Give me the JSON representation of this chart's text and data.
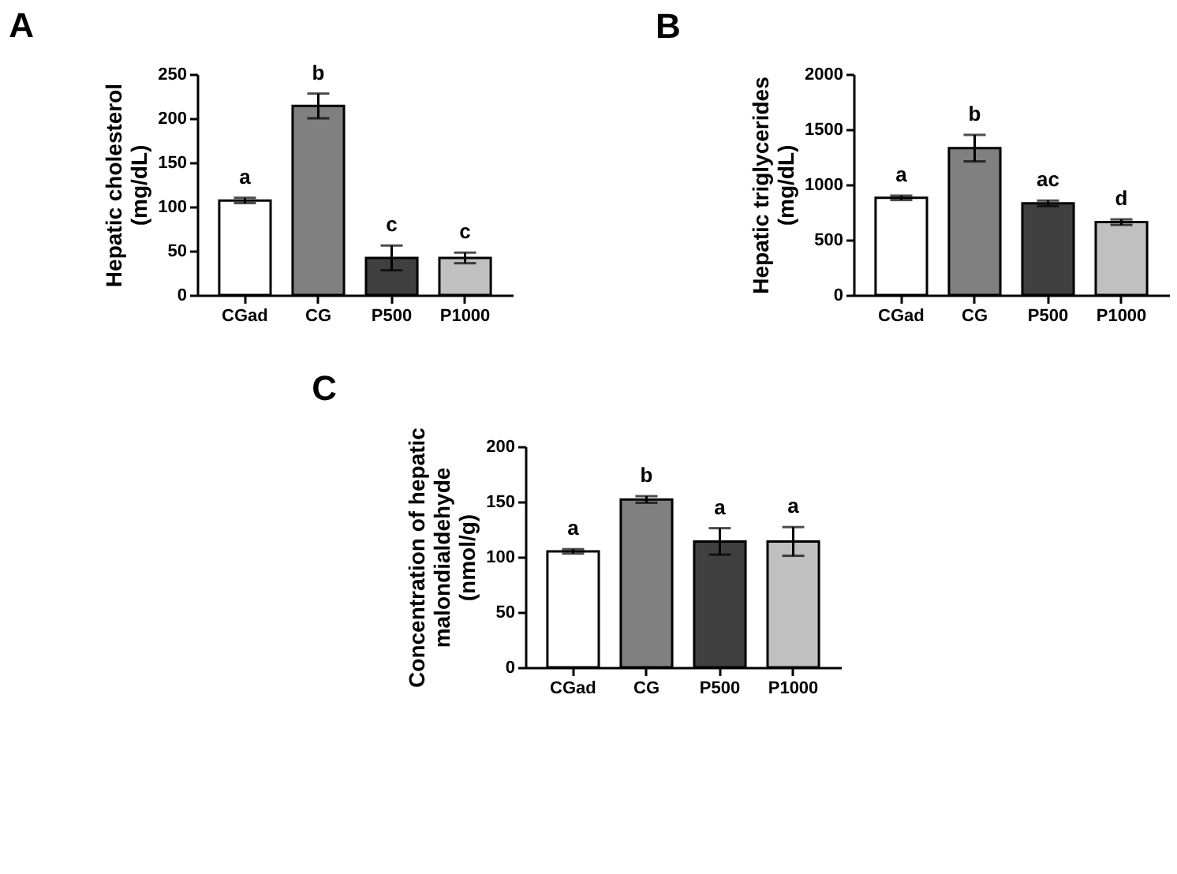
{
  "chart_data": [
    {
      "type": "bar",
      "title": "A",
      "ylabel": "Hepatic cholesterol\n(mg/dL)",
      "categories": [
        "CGad",
        "CG",
        "P500",
        "P1000"
      ],
      "values": [
        107,
        214,
        42,
        42
      ],
      "errors": [
        3,
        14,
        14,
        6
      ],
      "colors": [
        "#ffffff",
        "#808080",
        "#404040",
        "#c0c0c0"
      ],
      "ylim": [
        0,
        250
      ],
      "yticks": [
        0,
        50,
        100,
        150,
        200,
        250
      ],
      "grid": false,
      "annotations": [
        {
          "text": "a",
          "x": "CGad",
          "y": 110
        },
        {
          "text": "b",
          "x": "CG",
          "y": 228
        },
        {
          "text": "c",
          "x": "P500",
          "y": 56
        },
        {
          "text": "c",
          "x": "P1000",
          "y": 48
        }
      ]
    },
    {
      "type": "bar",
      "title": "B",
      "ylabel": "Hepatic triglycerides\n(mg/dL)",
      "categories": [
        "CGad",
        "CG",
        "P500",
        "P1000"
      ],
      "values": [
        880,
        1330,
        830,
        660
      ],
      "errors": [
        20,
        120,
        25,
        25
      ],
      "colors": [
        "#ffffff",
        "#808080",
        "#404040",
        "#c0c0c0"
      ],
      "ylim": [
        0,
        2000
      ],
      "yticks": [
        0,
        500,
        1000,
        1500,
        2000
      ],
      "grid": false,
      "annotations": [
        {
          "text": "a",
          "x": "CGad",
          "y": 900
        },
        {
          "text": "b",
          "x": "CG",
          "y": 1450
        },
        {
          "text": "ac",
          "x": "P500",
          "y": 855
        },
        {
          "text": "d",
          "x": "P1000",
          "y": 685
        }
      ]
    },
    {
      "type": "bar",
      "title": "C",
      "ylabel": "Concentration of hepatic\nmalondialdehyde\n(nmol/g)",
      "categories": [
        "CGad",
        "CG",
        "P500",
        "P1000"
      ],
      "values": [
        105,
        152,
        114,
        114
      ],
      "errors": [
        2,
        3,
        12,
        13
      ],
      "colors": [
        "#ffffff",
        "#808080",
        "#404040",
        "#c0c0c0"
      ],
      "ylim": [
        0,
        200
      ],
      "yticks": [
        0,
        50,
        100,
        150,
        200
      ],
      "grid": false,
      "annotations": [
        {
          "text": "a",
          "x": "CGad",
          "y": 107
        },
        {
          "text": "b",
          "x": "CG",
          "y": 155
        },
        {
          "text": "a",
          "x": "P500",
          "y": 126
        },
        {
          "text": "a",
          "x": "P1000",
          "y": 127
        }
      ]
    }
  ]
}
